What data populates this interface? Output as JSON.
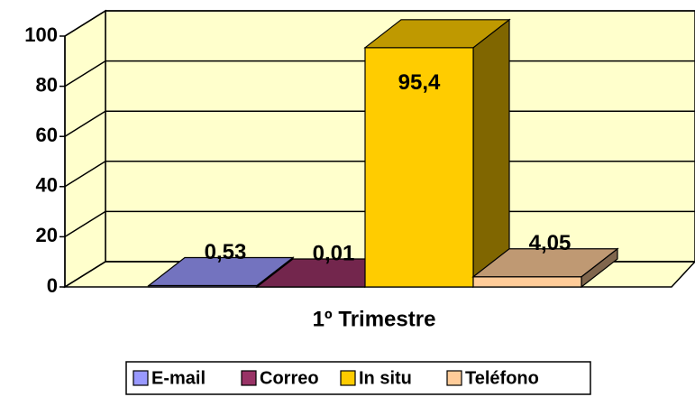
{
  "chart_data": {
    "type": "bar3d",
    "categories": [
      "1º Trimestre"
    ],
    "series": [
      {
        "name": "E-mail",
        "color": "#9999ff",
        "values": [
          0.53
        ],
        "value_labels": [
          "0,53"
        ]
      },
      {
        "name": "Correo",
        "color": "#993366",
        "values": [
          0.01
        ],
        "value_labels": [
          "0,01"
        ]
      },
      {
        "name": "In situ",
        "color": "#ffcc00",
        "values": [
          95.4
        ],
        "value_labels": [
          "95,4"
        ]
      },
      {
        "name": "Teléfono",
        "color": "#ffcc99",
        "values": [
          4.05
        ],
        "value_labels": [
          "4,05"
        ]
      }
    ],
    "ylim": [
      0,
      100
    ],
    "yticks": [
      0,
      20,
      40,
      60,
      80,
      100
    ],
    "grid": true,
    "legend": "bottom"
  }
}
